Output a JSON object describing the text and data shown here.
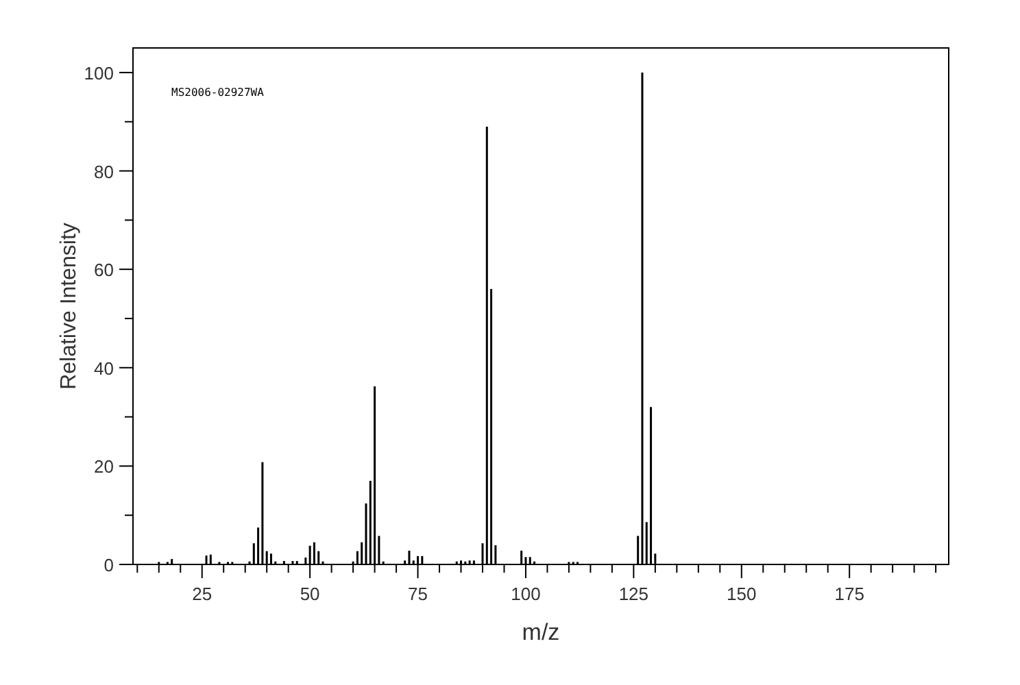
{
  "chart_data": {
    "type": "bar",
    "xlabel": "m/z",
    "ylabel": "Relative Intensity",
    "annotations": [
      "MS2006-02927WA"
    ],
    "color": "#000000",
    "x": [
      15,
      17,
      18,
      26,
      27,
      29,
      31,
      32,
      36,
      37,
      38,
      39,
      40,
      41,
      42,
      44,
      46,
      47,
      49,
      50,
      51,
      52,
      53,
      60,
      61,
      62,
      63,
      64,
      65,
      66,
      67,
      72,
      73,
      74,
      75,
      76,
      84,
      85,
      86,
      87,
      88,
      90,
      91,
      92,
      93,
      99,
      100,
      101,
      102,
      110,
      111,
      112,
      126,
      127,
      128,
      129,
      130
    ],
    "values": [
      0.5,
      0.5,
      1.1,
      1.8,
      2,
      0.5,
      0.5,
      0.5,
      0.6,
      4.3,
      7.5,
      20.8,
      2.7,
      2.2,
      0.6,
      0.7,
      0.7,
      0.7,
      1.4,
      3.8,
      4.5,
      2.7,
      0.6,
      0.6,
      2.7,
      4.5,
      12.4,
      17,
      36.2,
      5.8,
      0.6,
      0.8,
      2.8,
      0.8,
      1.7,
      1.7,
      0.6,
      0.8,
      0.6,
      0.8,
      0.8,
      4.3,
      89,
      56,
      3.9,
      2.8,
      1.5,
      1.5,
      0.6,
      0.5,
      0.5,
      0.5,
      5.8,
      100,
      8.6,
      32,
      2.2
    ],
    "xlim": [
      9,
      198
    ],
    "ylim": [
      0,
      105
    ],
    "xticks": [
      {
        "value": 10,
        "label": null
      },
      {
        "value": 15,
        "label": null
      },
      {
        "value": 20,
        "label": null
      },
      25,
      {
        "value": 30,
        "label": null
      },
      {
        "value": 35,
        "label": null
      },
      {
        "value": 40,
        "label": null
      },
      {
        "value": 45,
        "label": null
      },
      50,
      {
        "value": 55,
        "label": null
      },
      {
        "value": 60,
        "label": null
      },
      {
        "value": 65,
        "label": null
      },
      {
        "value": 70,
        "label": null
      },
      75,
      {
        "value": 80,
        "label": null
      },
      {
        "value": 85,
        "label": null
      },
      {
        "value": 90,
        "label": null
      },
      {
        "value": 95,
        "label": null
      },
      100,
      {
        "value": 105,
        "label": null
      },
      {
        "value": 110,
        "label": null
      },
      {
        "value": 115,
        "label": null
      },
      {
        "value": 120,
        "label": null
      },
      125,
      {
        "value": 130,
        "label": null
      },
      {
        "value": 135,
        "label": null
      },
      {
        "value": 140,
        "label": null
      },
      {
        "value": 145,
        "label": null
      },
      150,
      {
        "value": 155,
        "label": null
      },
      {
        "value": 160,
        "label": null
      },
      {
        "value": 165,
        "label": null
      },
      {
        "value": 170,
        "label": null
      },
      175,
      {
        "value": 180,
        "label": null
      },
      {
        "value": 185,
        "label": null
      },
      {
        "value": 190,
        "label": null
      },
      {
        "value": 195,
        "label": null
      }
    ],
    "yticks": [
      0,
      {
        "value": 10,
        "label": null
      },
      20,
      {
        "value": 30,
        "label": null
      },
      40,
      {
        "value": 50,
        "label": null
      },
      60,
      {
        "value": 70,
        "label": null
      },
      80,
      {
        "value": 90,
        "label": null
      },
      100
    ]
  }
}
